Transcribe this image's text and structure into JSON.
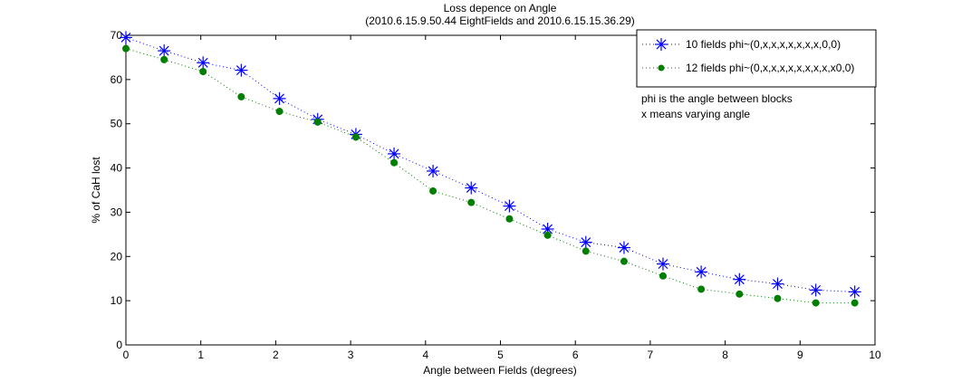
{
  "chart_data": {
    "type": "line",
    "title": "Loss depence on Angle",
    "subtitle": "(2010.6.15.9.50.44 EightFields and 2010.6.15.15.36.29)",
    "xlabel": "Angle between Fields (degrees)",
    "ylabel": "% of CaH lost",
    "xlim": [
      0,
      10
    ],
    "ylim": [
      0,
      70
    ],
    "xticks": [
      "0",
      "1",
      "2",
      "3",
      "4",
      "5",
      "6",
      "7",
      "8",
      "9",
      "10"
    ],
    "yticks": [
      "0",
      "10",
      "20",
      "30",
      "40",
      "50",
      "60",
      "70"
    ],
    "grid": false,
    "legend_position": "top-right",
    "x": [
      0,
      0.51,
      1.03,
      1.54,
      2.05,
      2.56,
      3.07,
      3.58,
      4.1,
      4.61,
      5.12,
      5.63,
      6.14,
      6.65,
      7.17,
      7.68,
      8.19,
      8.7,
      9.21,
      9.73
    ],
    "series": [
      {
        "name": "10 fields phi~(0,x,x,x,x,x,x,x,0,0)",
        "color": "#0000ff",
        "marker": "asterisk",
        "values": [
          69.5,
          66.5,
          63.8,
          62.1,
          55.7,
          51.0,
          47.6,
          43.2,
          39.3,
          35.5,
          31.4,
          26.2,
          23.2,
          22.0,
          18.3,
          16.5,
          14.8,
          13.8,
          12.4,
          12.0
        ]
      },
      {
        "name": "12 fields phi~(0,x,x,x,x,x,x,x,x,x0,0)",
        "color": "#007f00",
        "marker": "dot",
        "values": [
          67.0,
          64.5,
          61.8,
          56.1,
          52.8,
          50.4,
          47.0,
          41.2,
          34.8,
          32.2,
          28.5,
          24.8,
          21.2,
          18.9,
          15.6,
          12.6,
          11.5,
          10.5,
          9.5,
          9.5
        ]
      }
    ],
    "annotations": [
      "phi is the angle between blocks",
      "x means varying angle"
    ]
  }
}
